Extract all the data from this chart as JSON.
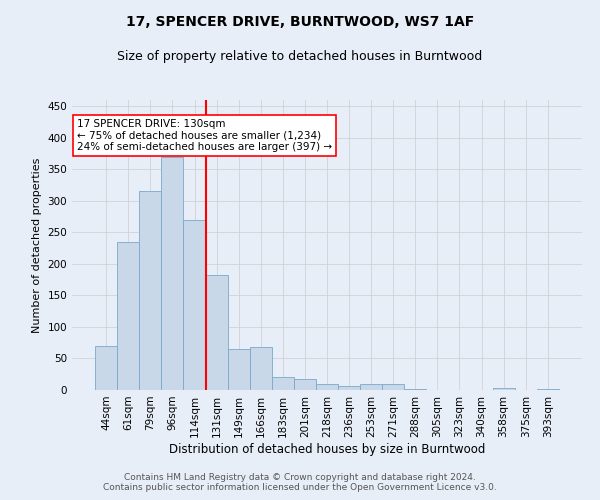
{
  "title": "17, SPENCER DRIVE, BURNTWOOD, WS7 1AF",
  "subtitle": "Size of property relative to detached houses in Burntwood",
  "xlabel": "Distribution of detached houses by size in Burntwood",
  "ylabel": "Number of detached properties",
  "categories": [
    "44sqm",
    "61sqm",
    "79sqm",
    "96sqm",
    "114sqm",
    "131sqm",
    "149sqm",
    "166sqm",
    "183sqm",
    "201sqm",
    "218sqm",
    "236sqm",
    "253sqm",
    "271sqm",
    "288sqm",
    "305sqm",
    "323sqm",
    "340sqm",
    "358sqm",
    "375sqm",
    "393sqm"
  ],
  "values": [
    70,
    235,
    315,
    370,
    270,
    183,
    65,
    68,
    20,
    18,
    10,
    7,
    9,
    9,
    2,
    0,
    0,
    0,
    3,
    0,
    2
  ],
  "bar_color": "#c8d8e8",
  "bar_edge_color": "#7aa8cc",
  "vline_x": 4.5,
  "vline_color": "red",
  "annotation_text": "17 SPENCER DRIVE: 130sqm\n← 75% of detached houses are smaller (1,234)\n24% of semi-detached houses are larger (397) →",
  "annotation_box_color": "white",
  "annotation_box_edge_color": "red",
  "ylim": [
    0,
    460
  ],
  "yticks": [
    0,
    50,
    100,
    150,
    200,
    250,
    300,
    350,
    400,
    450
  ],
  "grid_color": "#cccccc",
  "background_color": "#e8eef8",
  "footer_line1": "Contains HM Land Registry data © Crown copyright and database right 2024.",
  "footer_line2": "Contains public sector information licensed under the Open Government Licence v3.0.",
  "title_fontsize": 10,
  "subtitle_fontsize": 9,
  "xlabel_fontsize": 8.5,
  "ylabel_fontsize": 8,
  "tick_fontsize": 7.5,
  "footer_fontsize": 6.5,
  "annot_fontsize": 7.5
}
